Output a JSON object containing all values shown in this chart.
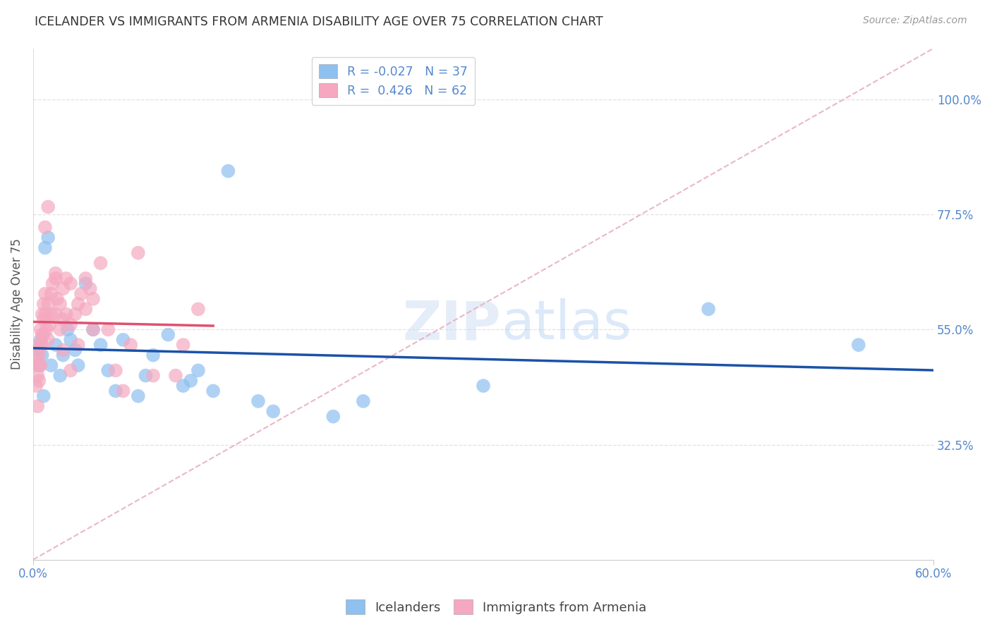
{
  "title": "ICELANDER VS IMMIGRANTS FROM ARMENIA DISABILITY AGE OVER 75 CORRELATION CHART",
  "source": "Source: ZipAtlas.com",
  "ylabel": "Disability Age Over 75",
  "y_ticks": [
    32.5,
    55.0,
    77.5,
    100.0
  ],
  "y_tick_labels": [
    "32.5%",
    "55.0%",
    "77.5%",
    "100.0%"
  ],
  "xlim": [
    0.0,
    60.0
  ],
  "ylim": [
    10.0,
    110.0
  ],
  "legend_label1": "Icelanders",
  "legend_label2": "Immigrants from Armenia",
  "watermark": "ZIPatlas",
  "blue_scatter_x": [
    0.3,
    0.5,
    0.6,
    0.8,
    1.0,
    1.2,
    1.5,
    1.8,
    2.0,
    2.3,
    2.5,
    2.8,
    3.0,
    3.5,
    4.0,
    4.5,
    5.0,
    5.5,
    6.0,
    7.0,
    7.5,
    8.0,
    9.0,
    10.0,
    10.5,
    11.0,
    12.0,
    13.0,
    15.0,
    16.0,
    20.0,
    22.0,
    30.0,
    45.0,
    55.0,
    0.4,
    0.7
  ],
  "blue_scatter_y": [
    51,
    53,
    50,
    71,
    73,
    48,
    52,
    46,
    50,
    55,
    53,
    51,
    48,
    64,
    55,
    52,
    47,
    43,
    53,
    42,
    46,
    50,
    54,
    44,
    45,
    47,
    43,
    86,
    41,
    39,
    38,
    41,
    44,
    59,
    52,
    48,
    42
  ],
  "pink_scatter_x": [
    0.1,
    0.2,
    0.2,
    0.3,
    0.3,
    0.4,
    0.4,
    0.5,
    0.5,
    0.6,
    0.6,
    0.7,
    0.7,
    0.8,
    0.8,
    0.9,
    1.0,
    1.0,
    1.1,
    1.2,
    1.2,
    1.3,
    1.5,
    1.5,
    1.6,
    1.8,
    1.8,
    2.0,
    2.0,
    2.0,
    2.2,
    2.2,
    2.5,
    2.5,
    2.8,
    3.0,
    3.0,
    3.2,
    3.5,
    3.5,
    3.8,
    4.0,
    4.0,
    4.5,
    5.0,
    5.5,
    6.0,
    6.5,
    7.0,
    8.0,
    9.5,
    10.0,
    11.0,
    0.3,
    0.4,
    0.5,
    0.6,
    0.7,
    0.8,
    1.0,
    1.5,
    2.5
  ],
  "pink_scatter_y": [
    48,
    50,
    44,
    52,
    46,
    50,
    48,
    55,
    52,
    58,
    54,
    60,
    57,
    62,
    58,
    55,
    60,
    53,
    56,
    62,
    58,
    64,
    66,
    58,
    61,
    60,
    55,
    63,
    57,
    51,
    65,
    58,
    64,
    56,
    58,
    52,
    60,
    62,
    65,
    59,
    63,
    61,
    55,
    68,
    55,
    47,
    43,
    52,
    70,
    46,
    46,
    52,
    59,
    40,
    45,
    48,
    52,
    54,
    75,
    79,
    65,
    47
  ],
  "blue_line_color": "#1a52a8",
  "pink_line_color": "#e05070",
  "dashed_line_color": "#e8b0c0",
  "dot_blue": "#8ec0f0",
  "dot_pink": "#f5a8c0",
  "axis_color": "#5588cc",
  "grid_color": "#e0e0e8",
  "background": "#ffffff",
  "legend_text_color": "#5588cc"
}
